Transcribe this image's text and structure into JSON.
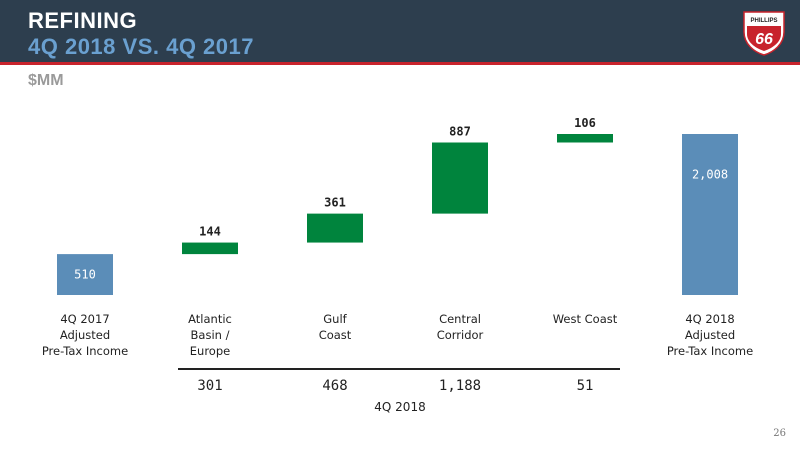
{
  "header": {
    "title": "REFINING",
    "subtitle": "4Q 2018 VS. 4Q 2017",
    "logo_text": "PHILLIPS",
    "logo_number": "66",
    "colors": {
      "bar": "#2d3e4e",
      "accent_rule": "#c8232c",
      "subtitle": "#6aa0d0",
      "logo_red": "#c8232c"
    }
  },
  "units": "$MM",
  "chart_data": {
    "type": "waterfall",
    "ylim": [
      0,
      2008
    ],
    "bars": [
      {
        "category": [
          "4Q 2017",
          "Adjusted",
          "Pre-Tax Income"
        ],
        "kind": "total",
        "start": 0,
        "end": 510,
        "label": "510",
        "color": "#5b8db8"
      },
      {
        "category": [
          "Atlantic",
          "Basin /",
          "Europe"
        ],
        "kind": "delta",
        "start": 510,
        "end": 654,
        "label": "144",
        "color": "#00843d"
      },
      {
        "category": [
          "Gulf",
          "Coast"
        ],
        "kind": "delta",
        "start": 654,
        "end": 1015,
        "label": "361",
        "color": "#00843d"
      },
      {
        "category": [
          "Central",
          "Corridor"
        ],
        "kind": "delta",
        "start": 1015,
        "end": 1902,
        "label": "887",
        "color": "#00843d"
      },
      {
        "category": [
          "West Coast"
        ],
        "kind": "delta",
        "start": 1902,
        "end": 2008,
        "label": "106",
        "color": "#00843d"
      },
      {
        "category": [
          "4Q 2018",
          "Adjusted",
          "Pre-Tax Income"
        ],
        "kind": "total",
        "start": 0,
        "end": 2008,
        "label": "2,008",
        "color": "#5b8db8"
      }
    ],
    "sub_values": [
      "301",
      "468",
      "1,188",
      "51"
    ],
    "sub_label": "4Q 2018"
  },
  "page_number": "26"
}
